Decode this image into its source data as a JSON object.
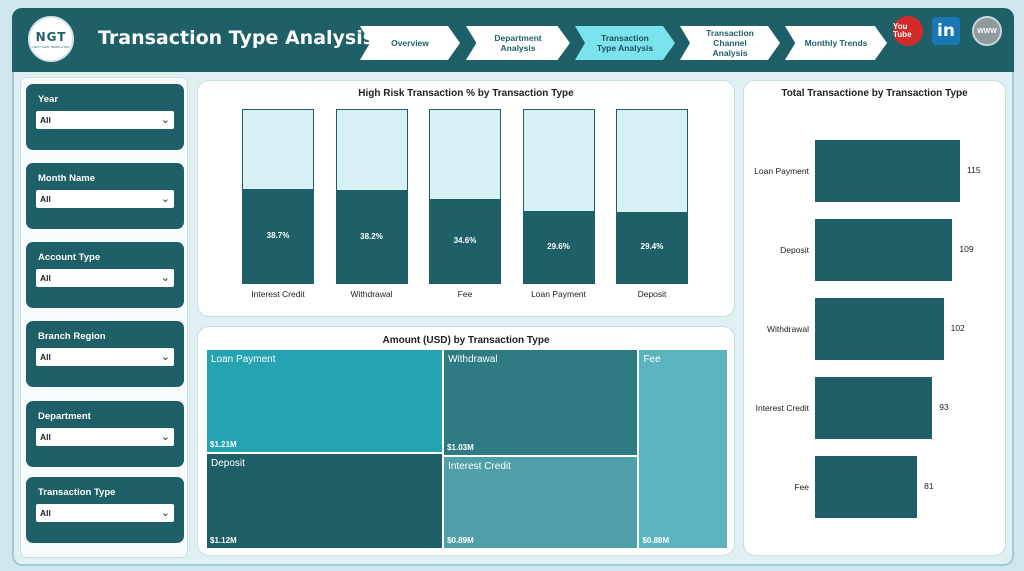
{
  "header": {
    "logo_text": "NGT",
    "logo_subtext": "NEXT GEN TEMPLATES",
    "title": "Transaction Type Analysis"
  },
  "nav": {
    "items": [
      {
        "label": "Overview"
      },
      {
        "label": "Department Analysis"
      },
      {
        "label": "Transaction Type Analysis",
        "active": true
      },
      {
        "label": "Transaction Channel Analysis"
      },
      {
        "label": "Monthly Trends"
      }
    ]
  },
  "social": {
    "youtube": "You Tube",
    "linkedin": "in",
    "web": "WWW"
  },
  "filters": [
    {
      "label": "Year",
      "value": "All"
    },
    {
      "label": "Month Name",
      "value": "All"
    },
    {
      "label": "Account Type",
      "value": "All"
    },
    {
      "label": "Branch Region",
      "value": "All"
    },
    {
      "label": "Department",
      "value": "All"
    },
    {
      "label": "Transaction Type",
      "value": "All"
    }
  ],
  "colors": {
    "primary": "#1f6068",
    "bar_background": "#d8f1f4",
    "active_nav": "#7be3ee"
  },
  "chart_data": [
    {
      "type": "bar",
      "title": "High Risk Transaction % by Transaction Type",
      "categories": [
        "Interest Credit",
        "Withdrawal",
        "Fee",
        "Loan Payment",
        "Deposit"
      ],
      "values": [
        38.7,
        38.2,
        34.6,
        29.6,
        29.4
      ],
      "value_labels": [
        "38.7%",
        "38.2%",
        "34.6%",
        "29.6%",
        "29.4%"
      ],
      "ylim": [
        0,
        100
      ]
    },
    {
      "type": "treemap",
      "title": "Amount (USD) by Transaction Type",
      "categories": [
        "Loan Payment",
        "Withdrawal",
        "Fee",
        "Deposit",
        "Interest Credit"
      ],
      "values": [
        1.21,
        1.03,
        0.88,
        1.12,
        0.89
      ],
      "value_labels": [
        "$1.21M",
        "$1.03M",
        "$0.88M",
        "$1.12M",
        "$0.89M"
      ],
      "colors": [
        "#24a4b2",
        "#2f7b84",
        "#5ab4c0",
        "#1f6068",
        "#4f9fa9"
      ]
    },
    {
      "type": "bar",
      "orientation": "horizontal",
      "title": "Total Transactione by Transaction Type",
      "categories": [
        "Loan Payment",
        "Deposit",
        "Withdrawal",
        "Interest Credit",
        "Fee"
      ],
      "values": [
        115,
        109,
        102,
        93,
        81
      ],
      "value_labels": [
        "115",
        "109",
        "102",
        "93",
        "81"
      ]
    }
  ]
}
